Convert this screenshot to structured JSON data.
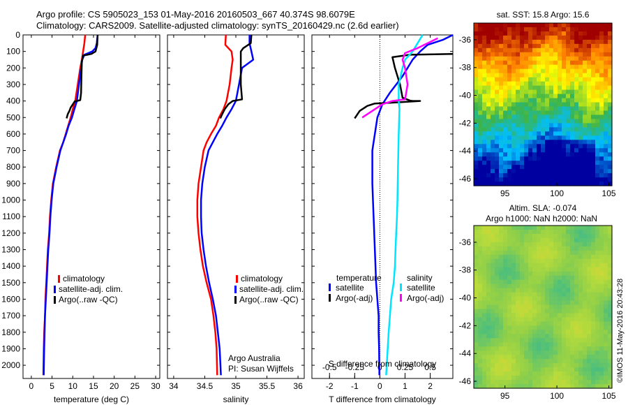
{
  "header": {
    "line1": "Argo profile: CS 5905023_153 01-May-2016 20160503_667 40.374S 98.6079E",
    "line2": "Climatology: CARS2009. Satellite-adjusted climatology: synTS_20160429.nc (2.6d earlier)"
  },
  "credits": {
    "line1": "Argo Australia",
    "line2": "PI: Susan Wijffels",
    "vertical": "©IMOS 11-May-2016 20:43:28"
  },
  "colors": {
    "climatology": "#ff0000",
    "satellite": "#0000ff",
    "argo": "#000000",
    "salinity_satellite": "#00e5ff",
    "salinity_argo": "#ff00ff",
    "sst_map_range": [
      "#0000a0",
      "#00bfff",
      "#3cb44b",
      "#ffff00",
      "#ff8000",
      "#a00000"
    ],
    "sla_map_base": "#8ecf4a"
  },
  "chart_data": [
    {
      "type": "line",
      "xlabel": "temperature (deg C)",
      "ylabel": "",
      "xlim": [
        -2,
        31
      ],
      "ylim": [
        2080,
        0
      ],
      "xticks": [
        "0",
        "5",
        "10",
        "15",
        "20",
        "25",
        "30"
      ],
      "yticks": [
        "0",
        "100",
        "200",
        "300",
        "400",
        "500",
        "600",
        "700",
        "800",
        "900",
        "1000",
        "1100",
        "1200",
        "1300",
        "1400",
        "1500",
        "1600",
        "1700",
        "1800",
        "1900",
        "2000"
      ],
      "legend": [
        "climatology",
        "satellite-adj. clim.",
        "Argo(..raw -QC)"
      ],
      "series": [
        {
          "name": "climatology",
          "color": "#ff0000",
          "x": [
            13,
            12.8,
            12.5,
            12.2,
            11.8,
            11.2,
            10.6,
            10,
            9.5,
            8.9,
            8.3,
            7.7,
            6.9,
            6,
            5.2,
            4.8,
            4.5,
            4.3,
            4,
            3.8,
            3.6,
            3.4,
            3.3,
            3.1,
            3,
            2.9
          ],
          "y": [
            0,
            50,
            100,
            150,
            200,
            300,
            400,
            450,
            500,
            550,
            600,
            650,
            700,
            800,
            900,
            1000,
            1100,
            1200,
            1300,
            1400,
            1500,
            1600,
            1700,
            1800,
            1900,
            2060
          ]
        },
        {
          "name": "satellite-adj. clim.",
          "color": "#0000ff",
          "x": [
            16,
            15.8,
            15.5,
            14.7,
            12.8,
            12.3,
            12,
            11.5,
            11,
            10.4,
            9.8,
            9,
            8.4,
            7.7,
            7,
            6.1,
            5.3,
            4.9,
            4.6,
            4.4,
            4.1,
            3.9,
            3.7,
            3.5,
            3.3,
            3.1,
            3
          ],
          "y": [
            0,
            50,
            80,
            100,
            120,
            150,
            200,
            300,
            400,
            450,
            500,
            550,
            600,
            650,
            700,
            800,
            900,
            1000,
            1100,
            1200,
            1300,
            1400,
            1500,
            1600,
            1700,
            1900,
            2060
          ]
        },
        {
          "name": "Argo(..raw -QC)",
          "color": "#000000",
          "x": [
            16,
            15.9,
            15.5,
            14.5,
            12.5,
            12.2,
            12.1,
            12,
            11.8,
            11,
            10.5,
            9.5,
            9.2,
            8.8,
            8.5
          ],
          "y": [
            0,
            60,
            100,
            115,
            125,
            160,
            250,
            350,
            395,
            400,
            402,
            440,
            460,
            480,
            505
          ]
        }
      ]
    },
    {
      "type": "line",
      "xlabel": "salinity",
      "ylabel": "",
      "xlim": [
        33.9,
        36.1
      ],
      "ylim": [
        2080,
        0
      ],
      "xticks": [
        "34",
        "34.5",
        "35",
        "35.5",
        "36"
      ],
      "legend": [
        "climatology",
        "satellite-adj. clim.",
        "Argo(..raw -QC)"
      ],
      "series": [
        {
          "name": "climatology",
          "color": "#ff0000",
          "x": [
            34.84,
            34.83,
            34.93,
            34.95,
            34.93,
            34.9,
            34.85,
            34.8,
            34.73,
            34.68,
            34.6,
            34.53,
            34.48,
            34.44,
            34.4,
            34.38,
            34.38,
            34.4,
            34.43,
            34.47,
            34.53,
            34.6,
            34.64,
            34.67,
            34.69,
            34.7
          ],
          "y": [
            0,
            60,
            100,
            150,
            200,
            300,
            400,
            450,
            500,
            550,
            600,
            650,
            700,
            800,
            900,
            1000,
            1100,
            1200,
            1300,
            1400,
            1500,
            1600,
            1700,
            1800,
            1900,
            2060
          ]
        },
        {
          "name": "satellite-adj. clim.",
          "color": "#0000ff",
          "x": [
            35.22,
            35.22,
            35.25,
            35.28,
            35.1,
            35.05,
            35,
            34.93,
            34.85,
            34.78,
            34.7,
            34.63,
            34.56,
            34.5,
            34.46,
            34.44,
            34.44,
            34.45,
            34.48,
            34.52,
            34.57,
            34.63,
            34.68,
            34.71,
            34.74,
            34.76
          ],
          "y": [
            0,
            50,
            100,
            150,
            200,
            300,
            400,
            450,
            500,
            550,
            600,
            650,
            700,
            800,
            900,
            1000,
            1100,
            1200,
            1300,
            1400,
            1500,
            1600,
            1700,
            1800,
            1900,
            2060
          ]
        },
        {
          "name": "Argo(..raw -QC)",
          "color": "#000000",
          "x": [
            35.25,
            35.24,
            35.12,
            35.08,
            35.08,
            35.08,
            35.08,
            35.1,
            34.95,
            34.88,
            34.82,
            34.78,
            34.75
          ],
          "y": [
            0,
            50,
            80,
            100,
            130,
            200,
            300,
            390,
            400,
            420,
            450,
            480,
            505
          ]
        }
      ]
    },
    {
      "type": "line",
      "xlabel": "T difference from climatology",
      "top_label": "S difference from climatology",
      "xlim": [
        -2.7,
        2.9
      ],
      "ylim": [
        2080,
        0
      ],
      "xticks": [
        "-2",
        "-1",
        "0",
        "1",
        "2"
      ],
      "top_xlim": [
        -0.5,
        0.5
      ],
      "top_xticks": [
        "-0.5",
        "-0.25",
        "0",
        "0.25",
        "0.5"
      ],
      "legend_groups": [
        {
          "title": "temperature",
          "items": [
            "satellite",
            "Argo(-adj)"
          ]
        },
        {
          "title": "salinity",
          "items": [
            "satellite",
            "Argo(-adj)"
          ]
        }
      ],
      "series": [
        {
          "name": "temperature satellite",
          "color": "#0000ff",
          "x": [
            3,
            2.5,
            1.9,
            1.6,
            1.3,
            0.9,
            0.4,
            0.1,
            -0.1,
            -0.2,
            -0.3,
            -0.3,
            -0.25,
            -0.2,
            -0.15,
            -0.1,
            -0.05,
            -0.05,
            -0.03,
            -0.02
          ],
          "y": [
            0,
            30,
            60,
            100,
            150,
            250,
            350,
            420,
            500,
            600,
            700,
            900,
            1100,
            1300,
            1500,
            1600,
            1700,
            1800,
            1900,
            2060
          ]
        },
        {
          "name": "temperature Argo(-adj)",
          "color": "#000000",
          "x": [
            3,
            1.2,
            0.5,
            0.6,
            0.8,
            0.9,
            1.2,
            1.3,
            1.6,
            0.5,
            -0.2,
            -0.5,
            -0.8,
            -1
          ],
          "y": [
            115,
            120,
            135,
            200,
            300,
            380,
            398,
            400,
            400,
            410,
            415,
            430,
            460,
            505
          ]
        },
        {
          "name": "salinity satellite",
          "color": "#00e5ff",
          "x": [
            1.7,
            1.5,
            1.3,
            1,
            0.9,
            0.75,
            0.75,
            0.78,
            0.75,
            0.72,
            0.7,
            0.68,
            0.65,
            0.62,
            0.6,
            0.55,
            0.45,
            0.35,
            0.25
          ],
          "y": [
            0,
            50,
            100,
            150,
            200,
            300,
            400,
            450,
            600,
            800,
            1000,
            1100,
            1200,
            1300,
            1400,
            1500,
            1600,
            1800,
            2060
          ]
        },
        {
          "name": "salinity Argo(-adj)",
          "color": "#ff00ff",
          "x": [
            2.3,
            1.5,
            1,
            0.9,
            1,
            1.1,
            1,
            0.5,
            0.1,
            -0.3,
            -0.7
          ],
          "y": [
            20,
            80,
            110,
            150,
            200,
            300,
            390,
            400,
            420,
            460,
            500
          ]
        }
      ]
    },
    {
      "type": "heatmap",
      "title": "sat. SST: 15.8  Argo: 15.6",
      "xticks": [
        "95",
        "100",
        "105"
      ],
      "yticks": [
        "-36",
        "-38",
        "-40",
        "-42",
        "-44",
        "-46"
      ],
      "xlim": [
        92,
        105.3
      ],
      "ylim": [
        -46.5,
        -34.8
      ]
    },
    {
      "type": "heatmap",
      "title": "Altim. SLA: -0.074",
      "subtitle": "Argo h1000: NaN h2000: NaN",
      "xticks": [
        "95",
        "100",
        "105"
      ],
      "yticks": [
        "-36",
        "-38",
        "-40",
        "-42",
        "-44",
        "-46"
      ],
      "xlim": [
        92,
        105.3
      ],
      "ylim": [
        -46.5,
        -34.8
      ]
    }
  ]
}
